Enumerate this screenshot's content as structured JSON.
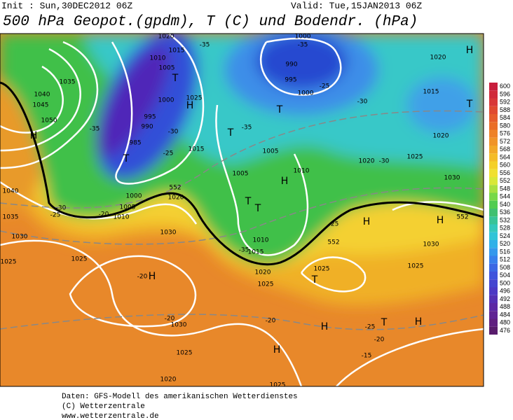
{
  "header": {
    "init": "Init : Sun,30DEC2012 06Z",
    "valid": "Valid: Tue,15JAN2013 06Z",
    "title": "500 hPa Geopot.(gpdm), T (C) und Bodendr. (hPa)"
  },
  "colorbar": {
    "levels": [
      {
        "label": "600",
        "color": "#c81e3c"
      },
      {
        "label": "596",
        "color": "#d02a3a"
      },
      {
        "label": "592",
        "color": "#d83838"
      },
      {
        "label": "588",
        "color": "#e04a30"
      },
      {
        "label": "584",
        "color": "#e65c2c"
      },
      {
        "label": "580",
        "color": "#ea6e28"
      },
      {
        "label": "576",
        "color": "#ee8228"
      },
      {
        "label": "572",
        "color": "#f09428"
      },
      {
        "label": "568",
        "color": "#f2a828"
      },
      {
        "label": "564",
        "color": "#f4bc28"
      },
      {
        "label": "560",
        "color": "#f4d028"
      },
      {
        "label": "556",
        "color": "#f0e030"
      },
      {
        "label": "552",
        "color": "#d8e838"
      },
      {
        "label": "548",
        "color": "#a8e040"
      },
      {
        "label": "544",
        "color": "#78d848"
      },
      {
        "label": "540",
        "color": "#50cc50"
      },
      {
        "label": "536",
        "color": "#40c070"
      },
      {
        "label": "532",
        "color": "#38c498"
      },
      {
        "label": "528",
        "color": "#34c8bc"
      },
      {
        "label": "524",
        "color": "#30c4d8"
      },
      {
        "label": "520",
        "color": "#30b0e8"
      },
      {
        "label": "516",
        "color": "#3498ec"
      },
      {
        "label": "512",
        "color": "#3880ec"
      },
      {
        "label": "508",
        "color": "#3c68e4"
      },
      {
        "label": "504",
        "color": "#4054dc"
      },
      {
        "label": "500",
        "color": "#4444d0"
      },
      {
        "label": "496",
        "color": "#4c38c4"
      },
      {
        "label": "492",
        "color": "#5430b4"
      },
      {
        "label": "488",
        "color": "#5c28a4"
      },
      {
        "label": "484",
        "color": "#602494"
      },
      {
        "label": "480",
        "color": "#602080"
      },
      {
        "label": "476",
        "color": "#581c6c"
      }
    ]
  },
  "map": {
    "labels": [
      "1020",
      "-35",
      "1015",
      "1010",
      "1005",
      "1000",
      "T",
      "H",
      "1025",
      "995",
      "990",
      "985",
      "T",
      "-30",
      "-25",
      "1015",
      "1035",
      "1040",
      "1045",
      "1050",
      "H",
      "-35",
      "1000",
      "-35",
      "990",
      "995",
      "1000",
      "-25",
      "T",
      "-35",
      "T",
      "1005",
      "1010",
      "1005",
      "H",
      "T",
      "1010",
      "1015",
      "1020",
      "1025",
      "-25",
      "552",
      "1020",
      "-30",
      "1025",
      "H",
      "H",
      "1030",
      "552",
      "1025",
      "1030",
      "1015",
      "T",
      "1020",
      "1020",
      "H",
      "-30",
      "1025",
      "T",
      "H",
      "T",
      "H",
      "-25",
      "-20",
      "-15",
      "H",
      "-20",
      "1025",
      "1020",
      "1025",
      "1030",
      "-20",
      "H",
      "-20",
      "1030",
      "1025",
      "1025",
      "1030",
      "1035",
      "1040",
      "-30",
      "-25",
      "-20",
      "1005",
      "1010",
      "1000",
      "1020",
      "552",
      "-35",
      "T"
    ]
  },
  "footer": {
    "lines": [
      "Daten: GFS-Modell des amerikanischen Wetterdienstes",
      "(C) Wetterzentrale",
      "www.wetterzentrale.de"
    ]
  }
}
